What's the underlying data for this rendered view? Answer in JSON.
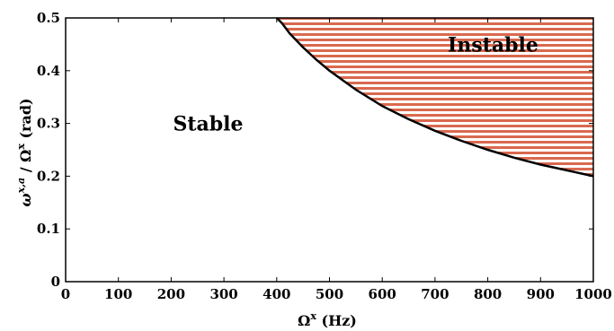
{
  "chart_data": {
    "type": "area",
    "xlabel": "Ω^x (Hz)",
    "ylabel": "ω^{x,a} / Ω^x (rad)",
    "xlim": [
      0,
      1000
    ],
    "ylim": [
      0,
      0.5
    ],
    "xticks": [
      0,
      100,
      200,
      300,
      400,
      500,
      600,
      700,
      800,
      900,
      1000
    ],
    "yticks": [
      0,
      0.1,
      0.2,
      0.3,
      0.4,
      0.5
    ],
    "ytick_labels": [
      "0",
      "0.1",
      "0.2",
      "0.3",
      "0.4",
      "0.5"
    ],
    "grid": false,
    "boundary": {
      "x": [
        400,
        410,
        425,
        450,
        475,
        500,
        550,
        600,
        650,
        700,
        750,
        800,
        850,
        900,
        950,
        1000
      ],
      "y": [
        0.5,
        0.49,
        0.47,
        0.444,
        0.421,
        0.4,
        0.364,
        0.333,
        0.308,
        0.286,
        0.267,
        0.25,
        0.235,
        0.222,
        0.211,
        0.2
      ]
    },
    "regions": [
      {
        "label": "Stable",
        "x": 270,
        "y": 0.3
      },
      {
        "label": "Instable",
        "x": 810,
        "y": 0.45
      }
    ],
    "colors": {
      "hatch": "#d9694f",
      "boundary": "#000000",
      "frame": "#000000"
    }
  }
}
